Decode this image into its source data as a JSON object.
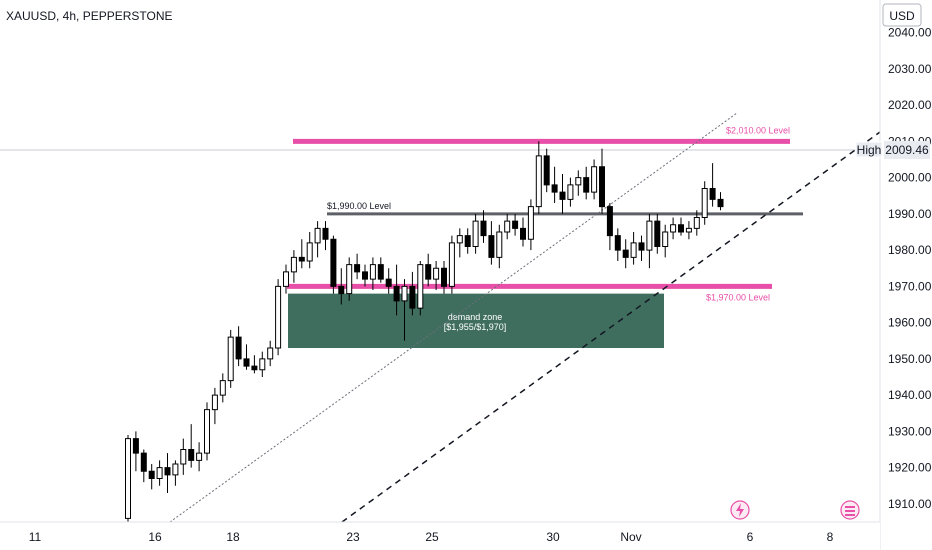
{
  "chart_data": {
    "type": "candlestick",
    "title": "XAUUSD, 4h, PEPPERSTONE",
    "currency": "USD",
    "ylim": [
      1905,
      2049
    ],
    "y_ticks": [
      "2040.00",
      "2030.00",
      "2020.00",
      "2010.00",
      "2000.00",
      "1990.00",
      "1980.00",
      "1970.00",
      "1960.00",
      "1950.00",
      "1940.00",
      "1930.00",
      "1920.00",
      "1910.00"
    ],
    "x_labels": [
      "11",
      "16",
      "18",
      "23",
      "25",
      "30",
      "Nov",
      "6",
      "8"
    ],
    "high_marker": {
      "label": "High",
      "value": "2009.46"
    },
    "levels": [
      {
        "label": "$2,010.00 Level",
        "value": 2010,
        "color": "#e84fa8"
      },
      {
        "label": "$1,990.00 Level",
        "value": 1990,
        "color": "#5d6066"
      },
      {
        "label": "$1,970.00 Level",
        "value": 1970,
        "color": "#e84fa8"
      }
    ],
    "demand_zone": {
      "label": "demand zone",
      "range_label": "[$1,955/$1,970]",
      "low": 1953,
      "high": 1968,
      "color": "#3f6e5f"
    },
    "up_color": "#ffffff",
    "down_color": "#000000",
    "candles": [
      [
        1906,
        1929,
        1905,
        1928
      ],
      [
        1928,
        1930,
        1919,
        1924
      ],
      [
        1924,
        1925,
        1916,
        1919
      ],
      [
        1919,
        1921,
        1914,
        1917
      ],
      [
        1917,
        1922,
        1915,
        1920
      ],
      [
        1920,
        1924,
        1913,
        1918
      ],
      [
        1918,
        1922,
        1915,
        1921
      ],
      [
        1921,
        1928,
        1918,
        1925
      ],
      [
        1925,
        1932,
        1920,
        1922
      ],
      [
        1922,
        1927,
        1919,
        1924
      ],
      [
        1924,
        1938,
        1922,
        1936
      ],
      [
        1936,
        1942,
        1932,
        1940
      ],
      [
        1940,
        1946,
        1938,
        1944
      ],
      [
        1944,
        1958,
        1942,
        1956
      ],
      [
        1956,
        1959,
        1948,
        1950
      ],
      [
        1950,
        1954,
        1947,
        1948
      ],
      [
        1948,
        1951,
        1946,
        1947
      ],
      [
        1947,
        1952,
        1945,
        1950
      ],
      [
        1950,
        1955,
        1948,
        1953
      ],
      [
        1953,
        1972,
        1951,
        1970
      ],
      [
        1970,
        1976,
        1968,
        1974
      ],
      [
        1974,
        1980,
        1971,
        1978
      ],
      [
        1978,
        1983,
        1975,
        1977
      ],
      [
        1977,
        1985,
        1975,
        1982
      ],
      [
        1982,
        1988,
        1978,
        1986
      ],
      [
        1986,
        1988,
        1980,
        1983
      ],
      [
        1983,
        1984,
        1968,
        1970
      ],
      [
        1970,
        1975,
        1965,
        1968
      ],
      [
        1968,
        1978,
        1966,
        1976
      ],
      [
        1976,
        1979,
        1972,
        1974
      ],
      [
        1974,
        1976,
        1970,
        1972
      ],
      [
        1972,
        1978,
        1969,
        1976
      ],
      [
        1976,
        1978,
        1971,
        1972
      ],
      [
        1972,
        1975,
        1968,
        1970
      ],
      [
        1970,
        1976,
        1962,
        1966
      ],
      [
        1966,
        1972,
        1955,
        1970
      ],
      [
        1970,
        1974,
        1962,
        1964
      ],
      [
        1964,
        1977,
        1962,
        1976
      ],
      [
        1976,
        1979,
        1970,
        1972
      ],
      [
        1972,
        1977,
        1969,
        1975
      ],
      [
        1975,
        1977,
        1968,
        1970
      ],
      [
        1970,
        1984,
        1968,
        1982
      ],
      [
        1982,
        1986,
        1978,
        1984
      ],
      [
        1984,
        1986,
        1979,
        1981
      ],
      [
        1981,
        1990,
        1979,
        1988
      ],
      [
        1988,
        1991,
        1982,
        1984
      ],
      [
        1984,
        1988,
        1976,
        1978
      ],
      [
        1978,
        1987,
        1975,
        1985
      ],
      [
        1985,
        1990,
        1983,
        1988
      ],
      [
        1988,
        1990,
        1984,
        1986
      ],
      [
        1986,
        1989,
        1981,
        1983
      ],
      [
        1983,
        1994,
        1980,
        1992
      ],
      [
        1992,
        2010,
        1990,
        2006
      ],
      [
        2006,
        2008,
        1996,
        1998
      ],
      [
        1998,
        2003,
        1993,
        1996
      ],
      [
        1996,
        2001,
        1990,
        1994
      ],
      [
        1994,
        2000,
        1992,
        1998
      ],
      [
        1998,
        2002,
        1995,
        2000
      ],
      [
        2000,
        2003,
        1994,
        1996
      ],
      [
        1996,
        2005,
        1994,
        2003
      ],
      [
        2003,
        2008,
        1990,
        1992
      ],
      [
        1992,
        1993,
        1980,
        1984
      ],
      [
        1984,
        1986,
        1977,
        1980
      ],
      [
        1980,
        1983,
        1975,
        1978
      ],
      [
        1978,
        1985,
        1976,
        1982
      ],
      [
        1982,
        1984,
        1977,
        1980
      ],
      [
        1980,
        1990,
        1975,
        1988
      ],
      [
        1988,
        1990,
        1979,
        1981
      ],
      [
        1981,
        1987,
        1978,
        1985
      ],
      [
        1985,
        1989,
        1983,
        1987
      ],
      [
        1987,
        1989,
        1984,
        1985
      ],
      [
        1985,
        1988,
        1983,
        1986
      ],
      [
        1986,
        1991,
        1984,
        1989
      ],
      [
        1989,
        1999,
        1987,
        1997
      ],
      [
        1997,
        2004,
        1992,
        1994
      ],
      [
        1994,
        1996,
        1991,
        1992
      ]
    ]
  }
}
